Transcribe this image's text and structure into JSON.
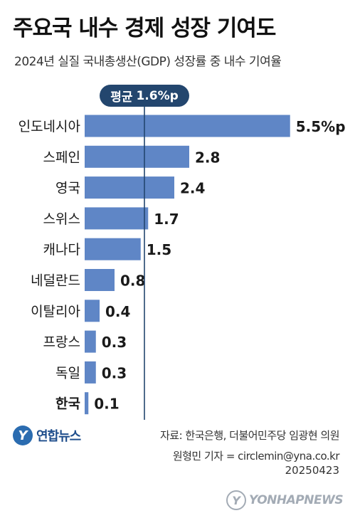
{
  "title": "주요국 내수 경제 성장 기여도",
  "subtitle": "2024년 실질 국내총생산(GDP) 성장률 중 내수 기여율",
  "average": {
    "label": "평균",
    "value": "1.6%p",
    "x_value": 1.6
  },
  "colors": {
    "bar": "#5f86c6",
    "avg_line": "#23466e",
    "badge": "#23466e"
  },
  "chart_data": {
    "type": "bar",
    "orientation": "horizontal",
    "categories": [
      "인도네시아",
      "스페인",
      "영국",
      "스위스",
      "캐나다",
      "네덜란드",
      "이탈리아",
      "프랑스",
      "독일",
      "한국"
    ],
    "values": [
      5.5,
      2.8,
      2.4,
      1.7,
      1.5,
      0.8,
      0.4,
      0.3,
      0.3,
      0.1
    ],
    "value_labels": [
      "5.5%p",
      "2.8",
      "2.4",
      "1.7",
      "1.5",
      "0.8",
      "0.4",
      "0.3",
      "0.3",
      "0.1"
    ],
    "highlight_category": "한국",
    "xlim": [
      0,
      5.5
    ],
    "grid": false,
    "reference_line": {
      "value": 1.6,
      "label": "평균 1.6%p"
    }
  },
  "footer": {
    "logo_text": "연합뉴스",
    "source": "자료: 한국은행, 더불어민주당 임광현 의원",
    "reporter": "원형민 기자 = circlemin@yna.co.kr",
    "date": "20250423",
    "watermark": "YONHAPNEWS"
  }
}
